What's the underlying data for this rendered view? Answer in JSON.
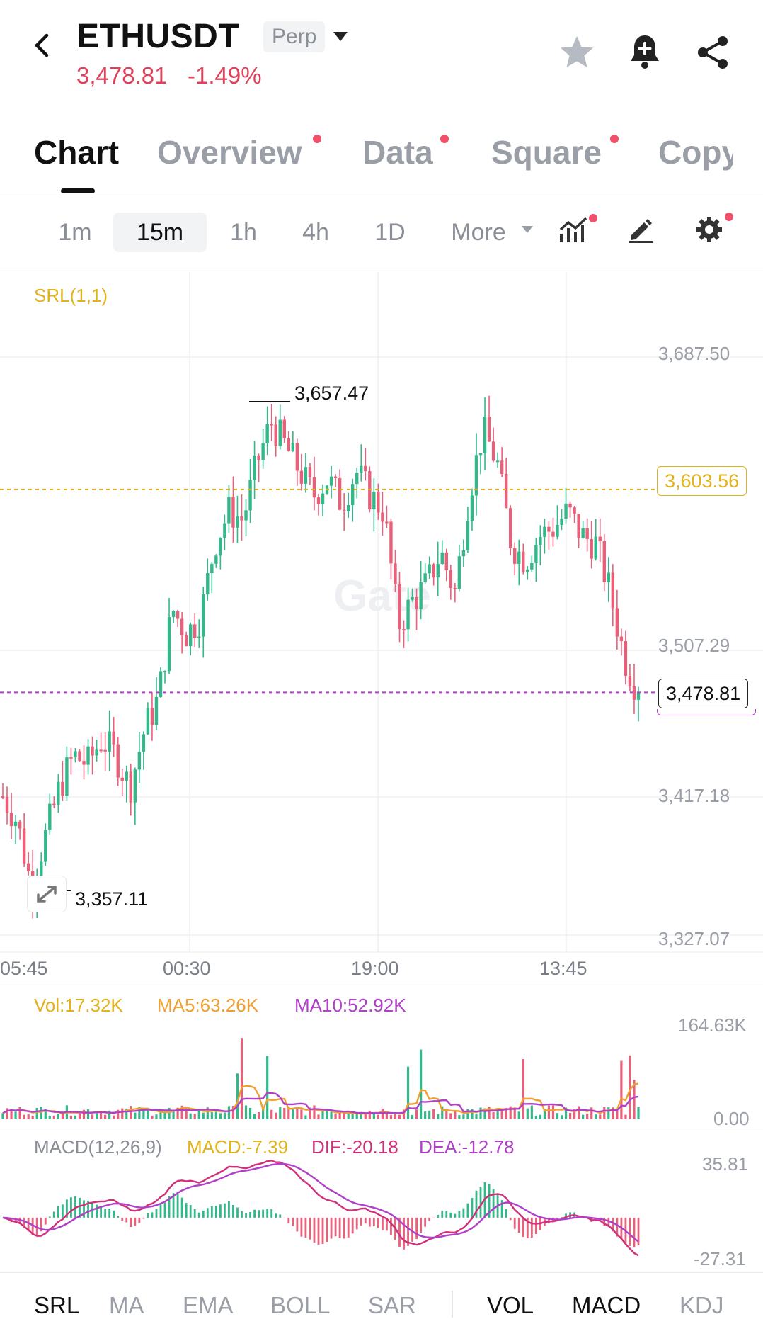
{
  "header": {
    "symbol": "ETHUSDT",
    "contract_badge": "Perp",
    "last_price": "3,478.81",
    "change_pct": "-1.49%",
    "price_color": "#e0405a"
  },
  "icons": {
    "back": "chevron-left-icon",
    "dropdown": "caret-down-icon",
    "favorite": "star-icon",
    "alert": "bell-plus-icon",
    "share": "share-icon",
    "indicators": "indicator-chart-icon",
    "draw": "pencil-icon",
    "settings": "gear-icon"
  },
  "tabs": [
    {
      "label": "Chart",
      "active": true,
      "dot": false
    },
    {
      "label": "Overview",
      "active": false,
      "dot": true
    },
    {
      "label": "Data",
      "active": false,
      "dot": true
    },
    {
      "label": "Square",
      "active": false,
      "dot": true
    },
    {
      "label": "Copy",
      "active": false,
      "dot": false
    }
  ],
  "intervals": {
    "items": [
      "1m",
      "15m",
      "1h",
      "4h",
      "1D"
    ],
    "selected": "15m",
    "more_label": "More"
  },
  "main_chart": {
    "indicator_label": "SRL(1,1)",
    "y_ticks": [
      "3,687.50",
      "3,507.29",
      "3,417.18",
      "3,327.07"
    ],
    "x_ticks": [
      "05:45",
      "00:30",
      "19:00",
      "13:45"
    ],
    "high_marker": "3,657.47",
    "low_marker": "3,357.11",
    "srl_level": "3,603.56",
    "last_price_box": "3,478.81",
    "watermark": "Gate"
  },
  "volume_panel": {
    "vol": "Vol:17.32K",
    "ma5": "MA5:63.26K",
    "ma10": "MA10:52.92K",
    "y_top": "164.63K",
    "y_bottom": "0.00"
  },
  "macd_panel": {
    "title": "MACD(12,26,9)",
    "macd": "MACD:-7.39",
    "dif": "DIF:-20.18",
    "dea": "DEA:-12.78",
    "y_top": "35.81",
    "y_bottom": "-27.31"
  },
  "bottom_indicators": {
    "main": [
      "SRL",
      "MA",
      "EMA",
      "BOLL",
      "SAR"
    ],
    "sub": [
      "VOL",
      "MACD",
      "KDJ"
    ],
    "active": [
      "SRL",
      "VOL",
      "MACD"
    ]
  },
  "colors": {
    "up": "#33b88a",
    "down": "#e8607a",
    "srl": "#e2b21a",
    "last_line": "#b040c8",
    "ma5": "#f0a030",
    "ma10": "#b040c8",
    "dif": "#d0307a",
    "dea": "#b040c8"
  },
  "chart_data": {
    "type": "candlestick",
    "y_range": [
      3327.07,
      3687.5
    ],
    "x_ticks": [
      "05:45",
      "00:30",
      "19:00",
      "13:45"
    ],
    "close_path": [
      3415,
      3400,
      3360,
      3390,
      3420,
      3440,
      3435,
      3450,
      3440,
      3420,
      3455,
      3475,
      3530,
      3515,
      3525,
      3570,
      3590,
      3585,
      3620,
      3645,
      3630,
      3615,
      3600,
      3610,
      3595,
      3615,
      3600,
      3590,
      3520,
      3535,
      3545,
      3565,
      3540,
      3600,
      3640,
      3620,
      3570,
      3560,
      3575,
      3580,
      3590,
      3575,
      3570,
      3540,
      3500,
      3478.81
    ],
    "annotations": {
      "high": 3657.47,
      "low": 3357.11,
      "srl": 3603.56,
      "last": 3478.81
    }
  }
}
